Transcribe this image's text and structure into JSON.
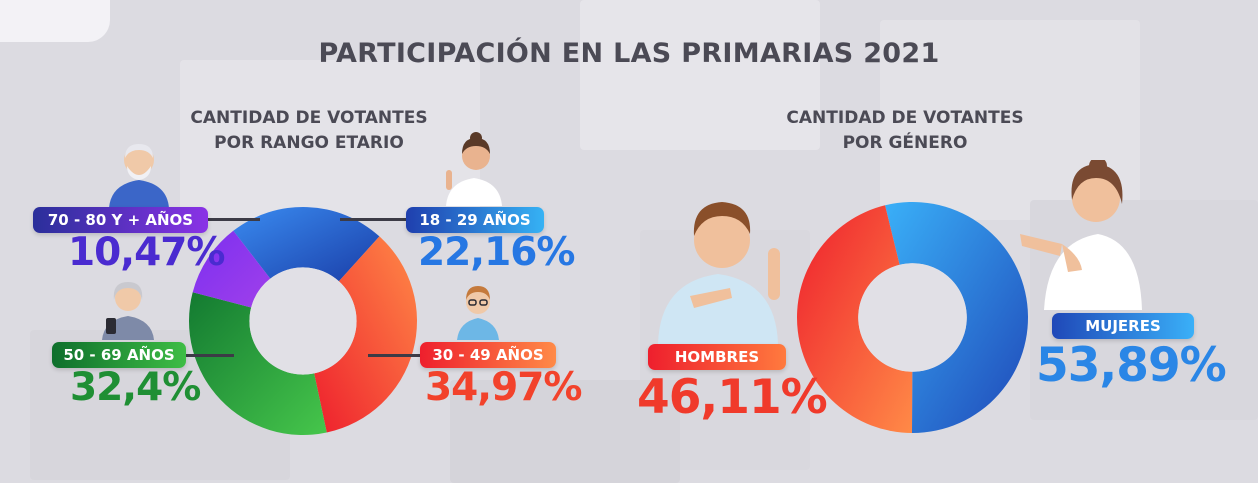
{
  "title": "PARTICIPACIÓN EN LAS PRIMARIAS 2021",
  "age_chart": {
    "subtitle_line1": "CANTIDAD DE VOTANTES",
    "subtitle_line2": "POR RANGO ETARIO"
  },
  "gender_chart": {
    "subtitle_line1": "CANTIDAD DE VOTANTES",
    "subtitle_line2": "POR GÉNERO"
  },
  "chart_data": [
    {
      "type": "pie",
      "donut": true,
      "categories": [
        "18 - 29 AÑOS",
        "30 - 49 AÑOS",
        "50 - 69 AÑOS",
        "70 - 80 Y + AÑOS"
      ],
      "values": [
        22.16,
        34.97,
        32.4,
        10.47
      ],
      "labels": [
        "22,16%",
        "34,97%",
        "32,4%",
        "10,47%"
      ],
      "colors": [
        "#1f4fc7",
        "#ff3d24",
        "#1e9a3a",
        "#8b2fe0"
      ]
    },
    {
      "type": "pie",
      "donut": true,
      "categories": [
        "MUJERES",
        "HOMBRES"
      ],
      "values": [
        53.89,
        46.11
      ],
      "labels": [
        "53,89%",
        "46,11%"
      ],
      "colors": [
        "#2f8ff0",
        "#ff3d24"
      ]
    }
  ]
}
